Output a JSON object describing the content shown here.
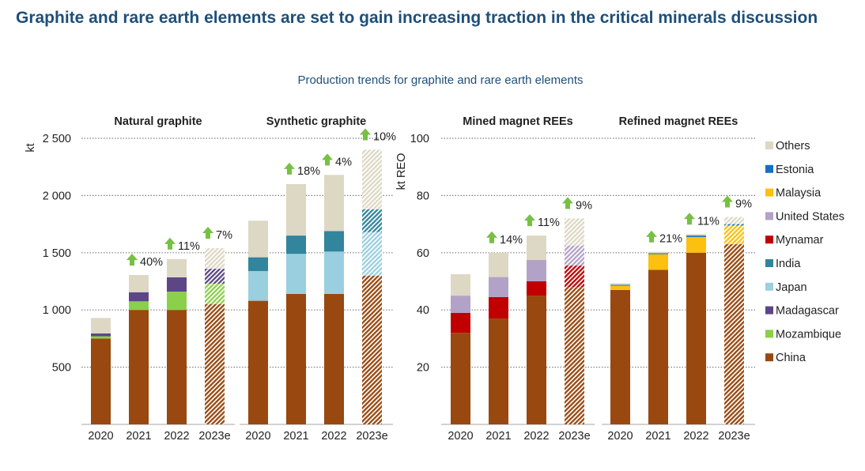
{
  "title": "Graphite and rare earth elements are set to gain increasing traction in the critical minerals discussion",
  "subtitle": "Production trends for graphite and rare earth elements",
  "colors": {
    "China": "#99480f",
    "Mozambique": "#8ccf4b",
    "Madagascar": "#5c4686",
    "Japan": "#9acfdf",
    "India": "#31859c",
    "Mynamar": "#c00000",
    "United States": "#b3a2c7",
    "Malaysia": "#fcc00e",
    "Estonia": "#1570be",
    "Others": "#ddd8c4",
    "arrow": "#77c043",
    "gridline": "#808080",
    "title_text": "#1d4f7a"
  },
  "legend": {
    "placement": "right",
    "entries": [
      "Others",
      "Estonia",
      "Malaysia",
      "United States",
      "Mynamar",
      "India",
      "Japan",
      "Madagascar",
      "Mozambique",
      "China"
    ]
  },
  "chart_data": [
    {
      "type": "bar",
      "stacked": true,
      "title": "Natural graphite",
      "ylabel": "kt",
      "ylim": [
        0,
        2500
      ],
      "yticks": [
        500,
        1000,
        1500,
        2000,
        2500
      ],
      "ytick_labels": [
        "500",
        "1 000",
        "1 500",
        "2 000",
        "2 500"
      ],
      "grid": true,
      "categories": [
        "2020",
        "2021",
        "2022",
        "2023e"
      ],
      "estimated_categories": [
        "2023e"
      ],
      "series": [
        {
          "name": "China",
          "values": [
            750,
            1000,
            1000,
            1050
          ]
        },
        {
          "name": "Mozambique",
          "values": [
            20,
            75,
            160,
            180
          ]
        },
        {
          "name": "Madagascar",
          "values": [
            25,
            80,
            125,
            130
          ]
        },
        {
          "name": "Others",
          "values": [
            135,
            150,
            160,
            180
          ]
        }
      ],
      "growth_labels": [
        "",
        "40%",
        "11%",
        "7%"
      ]
    },
    {
      "type": "bar",
      "stacked": true,
      "title": "Synthetic graphite",
      "ylabel": "kt",
      "ylim": [
        0,
        2500
      ],
      "grid": true,
      "categories": [
        "2020",
        "2021",
        "2022",
        "2023e"
      ],
      "estimated_categories": [
        "2023e"
      ],
      "series": [
        {
          "name": "China",
          "values": [
            1080,
            1140,
            1140,
            1300
          ]
        },
        {
          "name": "Japan",
          "values": [
            260,
            350,
            370,
            380
          ]
        },
        {
          "name": "India",
          "values": [
            120,
            160,
            180,
            200
          ]
        },
        {
          "name": "Others",
          "values": [
            320,
            450,
            490,
            520
          ]
        }
      ],
      "growth_labels": [
        "",
        "18%",
        "4%",
        "10%"
      ]
    },
    {
      "type": "bar",
      "stacked": true,
      "title": "Mined magnet REEs",
      "ylabel": "kt REO",
      "ylim": [
        0,
        100
      ],
      "yticks": [
        20,
        40,
        60,
        80,
        100
      ],
      "ytick_labels": [
        "20",
        "40",
        "60",
        "80",
        "100"
      ],
      "grid": true,
      "categories": [
        "2020",
        "2021",
        "2022",
        "2023e"
      ],
      "estimated_categories": [
        "2023e"
      ],
      "series": [
        {
          "name": "China",
          "values": [
            32,
            37,
            45,
            48
          ]
        },
        {
          "name": "Mynamar",
          "values": [
            7,
            7.5,
            5,
            7.5
          ]
        },
        {
          "name": "United States",
          "values": [
            6,
            7,
            7.5,
            7
          ]
        },
        {
          "name": "Others",
          "values": [
            7.5,
            8.5,
            8.5,
            9.5
          ]
        }
      ],
      "growth_labels": [
        "",
        "14%",
        "11%",
        "9%"
      ]
    },
    {
      "type": "bar",
      "stacked": true,
      "title": "Refined magnet REEs",
      "ylabel": "kt REO",
      "ylim": [
        0,
        100
      ],
      "grid": true,
      "categories": [
        "2020",
        "2021",
        "2022",
        "2023e"
      ],
      "estimated_categories": [
        "2023e"
      ],
      "series": [
        {
          "name": "China",
          "values": [
            47,
            54,
            60,
            63
          ]
        },
        {
          "name": "Malaysia",
          "values": [
            1.5,
            5.5,
            5.5,
            6.5
          ]
        },
        {
          "name": "Estonia",
          "values": [
            0.3,
            0.3,
            0.5,
            0.5
          ]
        },
        {
          "name": "Others",
          "values": [
            0.5,
            0.5,
            0.5,
            2.5
          ]
        }
      ],
      "growth_labels": [
        "",
        "21%",
        "11%",
        "9%"
      ]
    }
  ]
}
